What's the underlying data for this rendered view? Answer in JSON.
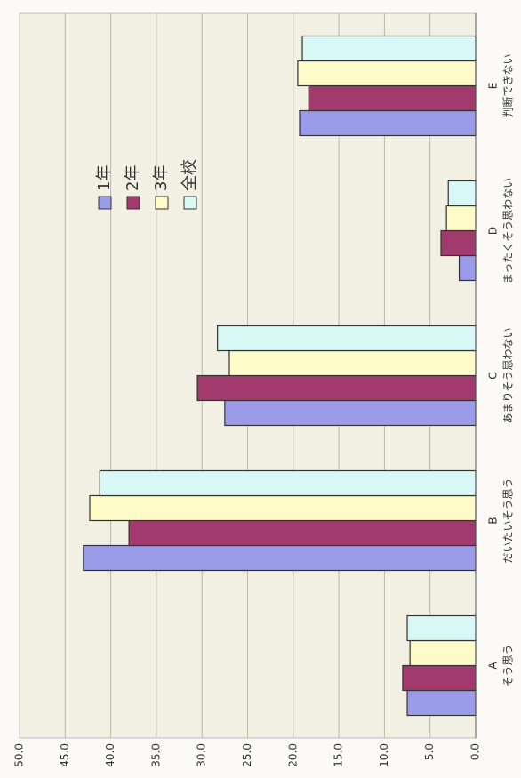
{
  "chart_data": {
    "type": "bar",
    "categories": [
      "A",
      "B",
      "C",
      "D",
      "E"
    ],
    "category_notes": [
      "そう思う",
      "だいたいそう思う",
      "あまりそう思わない",
      "まったくそう思わない",
      "判断できない"
    ],
    "series": [
      {
        "name": "1年",
        "color": "#9a9cea",
        "values": [
          7.5,
          43.0,
          27.5,
          1.8,
          19.3
        ]
      },
      {
        "name": "2年",
        "color": "#a23a6e",
        "values": [
          8.0,
          38.0,
          30.5,
          3.8,
          18.3
        ]
      },
      {
        "name": "3年",
        "color": "#fdfbc8",
        "values": [
          7.2,
          42.3,
          27.0,
          3.2,
          19.5
        ]
      },
      {
        "name": "全校",
        "color": "#d8f8f6",
        "values": [
          7.5,
          41.2,
          28.3,
          3.0,
          19.0
        ]
      }
    ],
    "ylim": [
      0,
      50
    ],
    "yticks": [
      {
        "value": 0,
        "label": "0.0"
      },
      {
        "value": 5,
        "label": "5.0"
      },
      {
        "value": 10,
        "label": "10.0"
      },
      {
        "value": 15,
        "label": "15.0"
      },
      {
        "value": 20,
        "label": "20.0"
      },
      {
        "value": 25,
        "label": "25.0"
      },
      {
        "value": 30,
        "label": "30.0"
      },
      {
        "value": 35,
        "label": "35.0"
      },
      {
        "value": 40,
        "label": "40.0"
      },
      {
        "value": 45,
        "label": "45.0"
      },
      {
        "value": 50,
        "label": "50.0"
      }
    ],
    "grid": true
  }
}
